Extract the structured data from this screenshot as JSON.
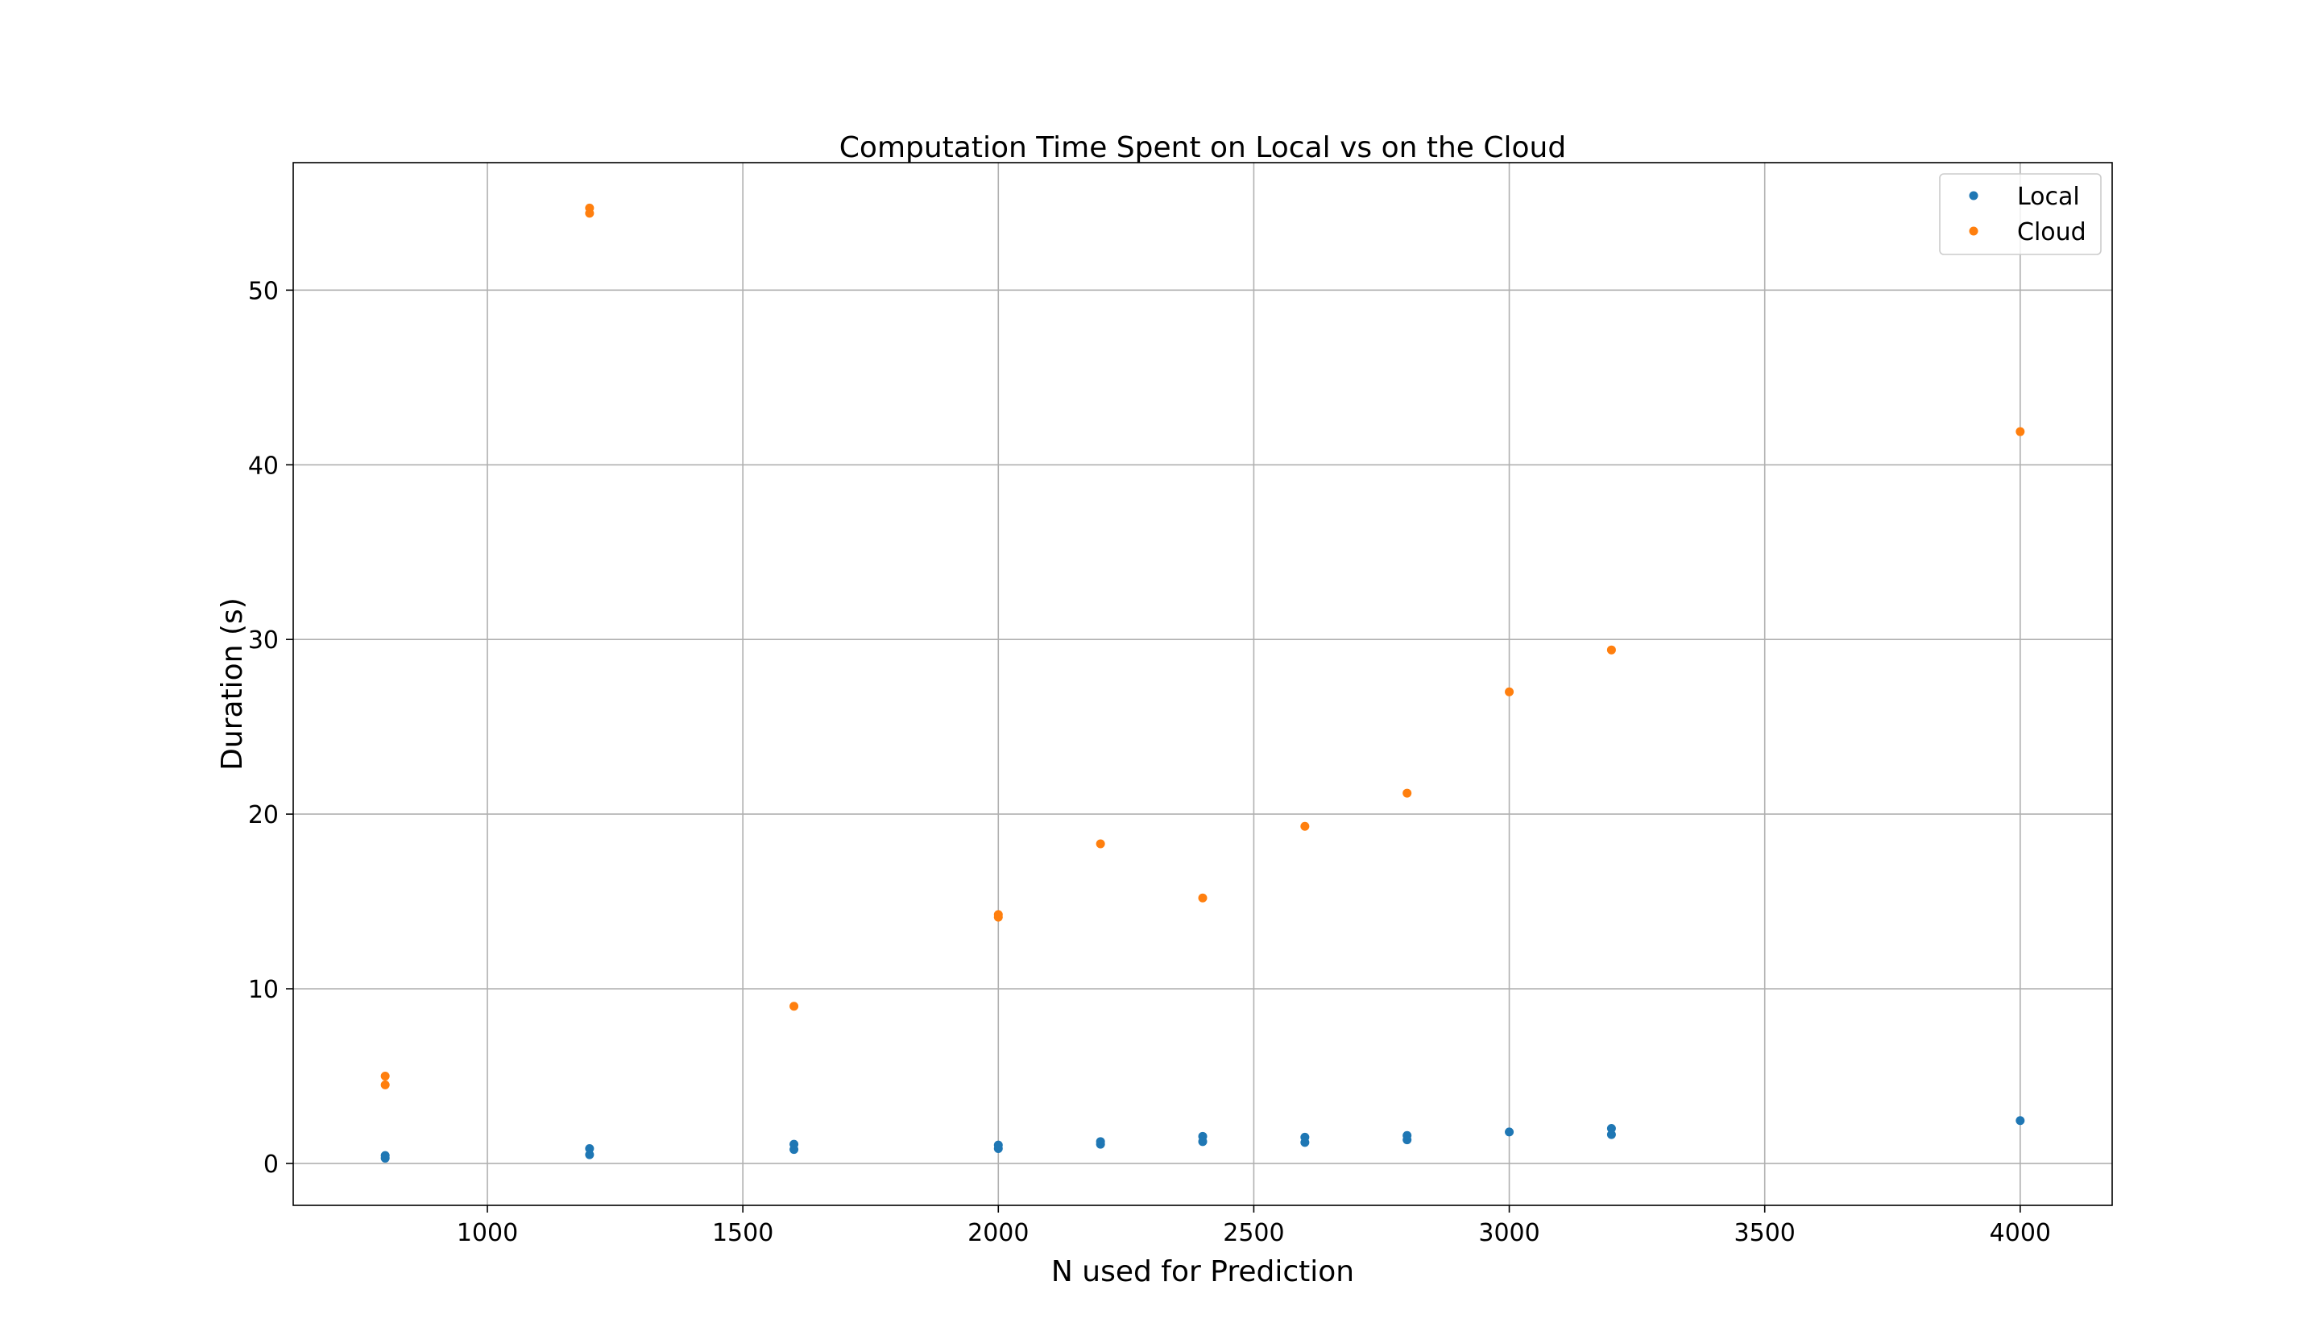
{
  "chart_data": {
    "type": "scatter",
    "title": "Computation Time Spent on Local vs on the Cloud",
    "xlabel": "N used for Prediction",
    "ylabel": "Duration (s)",
    "xlim": [
      620,
      4180
    ],
    "ylim": [
      -2.4,
      57.3
    ],
    "xticks": [
      1000,
      1500,
      2000,
      2500,
      3000,
      3500,
      4000
    ],
    "yticks": [
      0,
      10,
      20,
      30,
      40,
      50
    ],
    "grid": true,
    "legend_position": "top-right",
    "series": [
      {
        "name": "Local",
        "color": "#1f77b4",
        "points": [
          [
            800,
            0.3
          ],
          [
            800,
            0.45
          ],
          [
            1200,
            0.5
          ],
          [
            1200,
            0.85
          ],
          [
            1600,
            0.8
          ],
          [
            1600,
            1.1
          ],
          [
            2000,
            0.85
          ],
          [
            2000,
            1.05
          ],
          [
            2200,
            1.1
          ],
          [
            2200,
            1.25
          ],
          [
            2400,
            1.25
          ],
          [
            2400,
            1.55
          ],
          [
            2600,
            1.2
          ],
          [
            2600,
            1.5
          ],
          [
            2800,
            1.35
          ],
          [
            2800,
            1.6
          ],
          [
            3000,
            1.8
          ],
          [
            3200,
            1.65
          ],
          [
            3200,
            2.0
          ],
          [
            4000,
            2.45
          ]
        ]
      },
      {
        "name": "Cloud",
        "color": "#ff7f0e",
        "points": [
          [
            800,
            4.5
          ],
          [
            800,
            5.0
          ],
          [
            1200,
            54.4
          ],
          [
            1200,
            54.7
          ],
          [
            1600,
            9.0
          ],
          [
            2000,
            14.1
          ],
          [
            2000,
            14.25
          ],
          [
            2200,
            18.3
          ],
          [
            2400,
            15.2
          ],
          [
            2600,
            19.3
          ],
          [
            2800,
            21.2
          ],
          [
            3000,
            27.0
          ],
          [
            3200,
            29.4
          ],
          [
            4000,
            41.9
          ]
        ]
      }
    ]
  }
}
